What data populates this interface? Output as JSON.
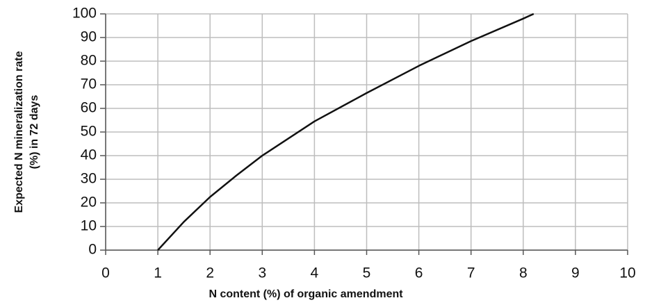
{
  "chart_data": {
    "type": "line",
    "x_label": "N content (%) of organic amendment",
    "y_label": [
      "Expected N mineralization rate",
      "(%) in 72 days"
    ],
    "x": [
      1,
      1.5,
      2,
      2.5,
      3,
      4,
      5,
      6,
      7,
      8,
      8.2
    ],
    "series": [
      {
        "color": "#111111",
        "values": [
          0,
          12,
          22.5,
          31.5,
          40,
          54.5,
          66.5,
          78,
          88.5,
          98,
          100
        ]
      }
    ],
    "xlim": [
      0,
      10
    ],
    "xticks": [
      0,
      1,
      2,
      3,
      4,
      5,
      6,
      7,
      8,
      9,
      10
    ],
    "ylim": [
      0,
      100
    ],
    "yticks": [
      0,
      10,
      20,
      30,
      40,
      50,
      60,
      70,
      80,
      90,
      100
    ],
    "grid": true
  }
}
